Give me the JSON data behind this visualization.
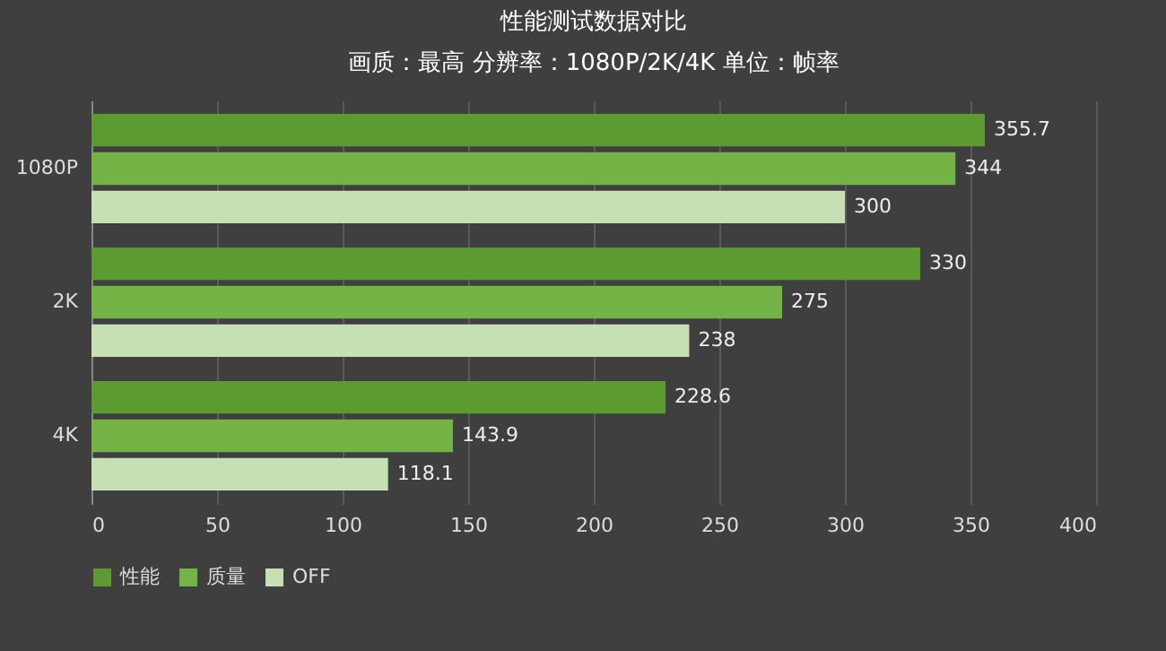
{
  "chart_data": {
    "type": "bar",
    "orientation": "horizontal",
    "title": "性能测试数据对比",
    "subtitle": "画质：最高 分辨率：1080P/2K/4K 单位：帧率",
    "categories": [
      "1080P",
      "2K",
      "4K"
    ],
    "series": [
      {
        "name": "性能",
        "color": "#5b9b32",
        "values": [
          355.7,
          330,
          228.6
        ]
      },
      {
        "name": "质量",
        "color": "#74b446",
        "values": [
          344,
          275,
          143.9
        ]
      },
      {
        "name": "OFF",
        "color": "#c6e0b4",
        "values": [
          300,
          238,
          118.1
        ]
      }
    ],
    "xlim": [
      0,
      400
    ],
    "xticks": [
      0,
      50,
      100,
      150,
      200,
      250,
      300,
      350,
      400
    ],
    "grid": "x",
    "legend": "bottom",
    "data_labels": true
  }
}
